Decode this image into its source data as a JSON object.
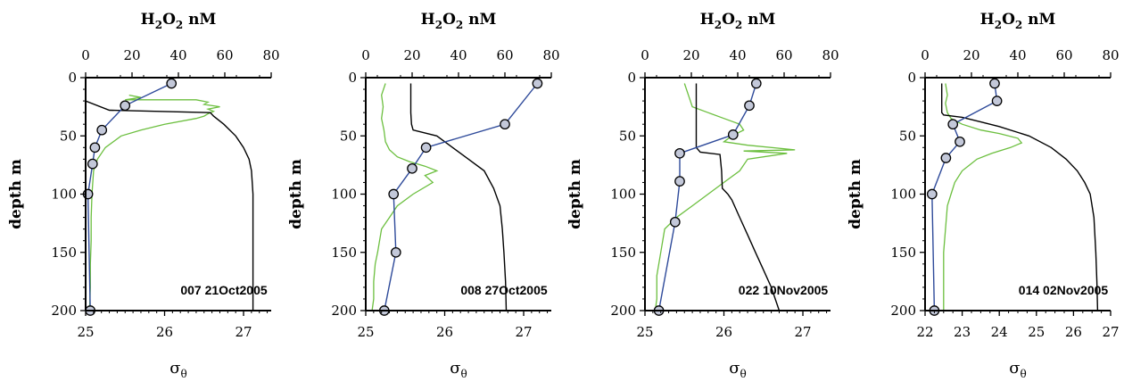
{
  "chart_data": [
    {
      "type": "line",
      "annotation": "007 21Oct2005",
      "top_axis": {
        "label_main": "H",
        "label_sub1": "2",
        "label_mid": "O",
        "label_sub2": "2",
        "label_unit": " nM",
        "ticks": [
          "0",
          "20",
          "40",
          "60",
          "80"
        ],
        "lim": [
          0,
          80
        ]
      },
      "bottom_axis": {
        "label_main": "σ",
        "label_sub": "θ",
        "ticks": [
          "25",
          "26",
          "27"
        ],
        "tick_values": [
          25,
          26,
          27
        ],
        "lim": [
          25,
          27.35
        ]
      },
      "y_axis": {
        "label": "depth m",
        "ticks": [
          "0",
          "50",
          "100",
          "150",
          "200"
        ],
        "lim": [
          0,
          200
        ],
        "inverted": true
      },
      "colors": {
        "h2o2": "#2e4a9a",
        "sigma": "#000000",
        "green": "#6cbf3f",
        "marker": "#c3c8d9"
      },
      "series": [
        {
          "x": [
            37,
            17,
            7,
            4,
            3,
            1,
            2
          ],
          "y": [
            5,
            24,
            45,
            60,
            74,
            100,
            200
          ]
        },
        {
          "x": [
            25.0,
            25.0,
            25.0,
            25.0,
            25.0,
            25.3,
            26.58,
            26.62,
            26.75,
            26.9,
            27.0,
            27.07,
            27.1,
            27.12,
            27.12,
            27.12
          ],
          "y": [
            0,
            5,
            10,
            15,
            20,
            28,
            30,
            33,
            40,
            50,
            60,
            70,
            80,
            100,
            150,
            200
          ]
        },
        {
          "x": [
            25.55,
            25.7,
            25.5,
            26.4,
            26.55,
            26.5,
            26.7,
            26.55,
            26.62,
            26.55,
            26.5,
            26.4,
            26.0,
            25.7,
            25.45,
            25.25,
            25.15,
            25.1,
            25.08,
            25.07,
            25.07,
            25.06,
            25.06,
            25.05
          ],
          "y": [
            15,
            17,
            19,
            19,
            21,
            23,
            25,
            27,
            29,
            31,
            33,
            35,
            40,
            45,
            50,
            60,
            70,
            80,
            100,
            120,
            140,
            160,
            180,
            200
          ]
        }
      ]
    },
    {
      "type": "line",
      "annotation": "008 27Oct2005",
      "top_axis": {
        "label_main": "H",
        "label_sub1": "2",
        "label_mid": "O",
        "label_sub2": "2",
        "label_unit": " nM",
        "ticks": [
          "0",
          "20",
          "40",
          "60",
          "80"
        ],
        "lim": [
          0,
          80
        ]
      },
      "bottom_axis": {
        "label_main": "σ",
        "label_sub": "θ",
        "ticks": [
          "25",
          "26",
          "27"
        ],
        "tick_values": [
          25,
          26,
          27
        ],
        "lim": [
          25,
          27.35
        ]
      },
      "y_axis": {
        "label": "depth m",
        "ticks": [
          "0",
          "50",
          "100",
          "150",
          "200"
        ],
        "lim": [
          0,
          200
        ],
        "inverted": true
      },
      "colors": {
        "h2o2": "#2e4a9a",
        "sigma": "#000000",
        "green": "#6cbf3f",
        "marker": "#c3c8d9"
      },
      "series": [
        {
          "x": [
            74,
            60,
            26,
            20,
            12,
            13,
            8
          ],
          "y": [
            5,
            40,
            60,
            78,
            100,
            150,
            200
          ]
        },
        {
          "x": [
            25.57,
            25.57,
            25.57,
            25.58,
            25.6,
            25.9,
            26.1,
            26.3,
            26.5,
            26.62,
            26.7,
            26.73,
            26.75,
            26.77,
            26.78
          ],
          "y": [
            5,
            20,
            30,
            40,
            45,
            50,
            60,
            70,
            80,
            95,
            110,
            130,
            150,
            175,
            200
          ]
        },
        {
          "x": [
            25.25,
            25.2,
            25.22,
            25.2,
            25.23,
            25.25,
            25.3,
            25.4,
            25.55,
            25.75,
            25.9,
            25.75,
            25.85,
            25.6,
            25.4,
            25.3,
            25.2,
            25.15,
            25.12,
            25.1,
            25.1,
            25.08
          ],
          "y": [
            5,
            15,
            25,
            35,
            45,
            55,
            62,
            68,
            72,
            76,
            80,
            84,
            90,
            100,
            110,
            120,
            130,
            150,
            160,
            175,
            190,
            200
          ]
        }
      ]
    },
    {
      "type": "line",
      "annotation": "022 10Nov2005",
      "top_axis": {
        "label_main": "H",
        "label_sub1": "2",
        "label_mid": "O",
        "label_sub2": "2",
        "label_unit": " nM",
        "ticks": [
          "0",
          "20",
          "40",
          "60",
          "80"
        ],
        "lim": [
          0,
          80
        ]
      },
      "bottom_axis": {
        "label_main": "σ",
        "label_sub": "θ",
        "ticks": [
          "25",
          "26",
          "27"
        ],
        "tick_values": [
          25,
          26,
          27
        ],
        "lim": [
          25,
          27.35
        ]
      },
      "y_axis": {
        "label": "depth m",
        "ticks": [
          "0",
          "50",
          "100",
          "150",
          "200"
        ],
        "lim": [
          0,
          200
        ],
        "inverted": true
      },
      "colors": {
        "h2o2": "#2e4a9a",
        "sigma": "#000000",
        "green": "#6cbf3f",
        "marker": "#c3c8d9"
      },
      "series": [
        {
          "x": [
            48,
            45,
            38,
            15,
            15,
            13,
            6
          ],
          "y": [
            5,
            24,
            49,
            65,
            89,
            124,
            200
          ]
        },
        {
          "x": [
            25.65,
            25.65,
            25.65,
            25.65,
            25.65,
            25.7,
            25.95,
            25.97,
            25.98,
            26.05,
            26.1,
            26.2,
            26.3,
            26.4,
            26.5,
            26.6,
            26.7
          ],
          "y": [
            5,
            20,
            40,
            55,
            60,
            64,
            66,
            80,
            95,
            100,
            105,
            120,
            135,
            150,
            165,
            180,
            200
          ]
        },
        {
          "x": [
            25.5,
            25.55,
            25.6,
            25.8,
            26.0,
            26.2,
            26.25,
            26.1,
            26.0,
            26.3,
            26.9,
            26.25,
            26.8,
            26.3,
            26.2,
            26.0,
            25.8,
            25.6,
            25.4,
            25.25,
            25.2,
            25.15,
            25.15,
            25.13
          ],
          "y": [
            5,
            15,
            25,
            30,
            35,
            40,
            45,
            50,
            55,
            58,
            62,
            63,
            65,
            70,
            80,
            90,
            100,
            110,
            120,
            130,
            150,
            170,
            190,
            200
          ]
        }
      ]
    },
    {
      "type": "line",
      "annotation": "014 02Nov2005",
      "top_axis": {
        "label_main": "H",
        "label_sub1": "2",
        "label_mid": "O",
        "label_sub2": "2",
        "label_unit": " nM",
        "ticks": [
          "0",
          "20",
          "40",
          "60",
          "80"
        ],
        "lim": [
          0,
          80
        ]
      },
      "bottom_axis": {
        "label_main": "σ",
        "label_sub": "θ",
        "ticks": [
          "22",
          "23",
          "24",
          "25",
          "26",
          "27"
        ],
        "tick_values": [
          22,
          23,
          24,
          25,
          26,
          27
        ],
        "lim": [
          22,
          27
        ]
      },
      "y_axis": {
        "label": "depth m",
        "ticks": [
          "0",
          "50",
          "100",
          "150",
          "200"
        ],
        "lim": [
          0,
          200
        ],
        "inverted": true
      },
      "colors": {
        "h2o2": "#2e4a9a",
        "sigma": "#000000",
        "green": "#6cbf3f",
        "marker": "#c3c8d9"
      },
      "series": [
        {
          "x": [
            30,
            31,
            12,
            15,
            9,
            3,
            4
          ],
          "y": [
            5,
            20,
            40,
            55,
            69,
            100,
            200
          ]
        },
        {
          "x": [
            22.45,
            22.45,
            22.45,
            22.45,
            22.5,
            23.0,
            23.5,
            24.0,
            24.8,
            25.4,
            25.8,
            26.1,
            26.3,
            26.45,
            26.55,
            26.6,
            26.63,
            26.65
          ],
          "y": [
            5,
            15,
            25,
            30,
            32,
            34,
            38,
            42,
            50,
            60,
            70,
            80,
            90,
            100,
            120,
            150,
            175,
            200
          ]
        },
        {
          "x": [
            22.55,
            22.6,
            22.55,
            22.6,
            22.7,
            23.0,
            23.5,
            24.0,
            24.5,
            24.6,
            24.3,
            23.8,
            23.4,
            23.2,
            23.0,
            22.8,
            22.7,
            22.6,
            22.55,
            22.5,
            22.5,
            22.5
          ],
          "y": [
            5,
            15,
            22,
            30,
            35,
            40,
            45,
            48,
            52,
            56,
            60,
            65,
            70,
            75,
            80,
            90,
            100,
            110,
            130,
            150,
            180,
            200
          ]
        }
      ]
    }
  ]
}
